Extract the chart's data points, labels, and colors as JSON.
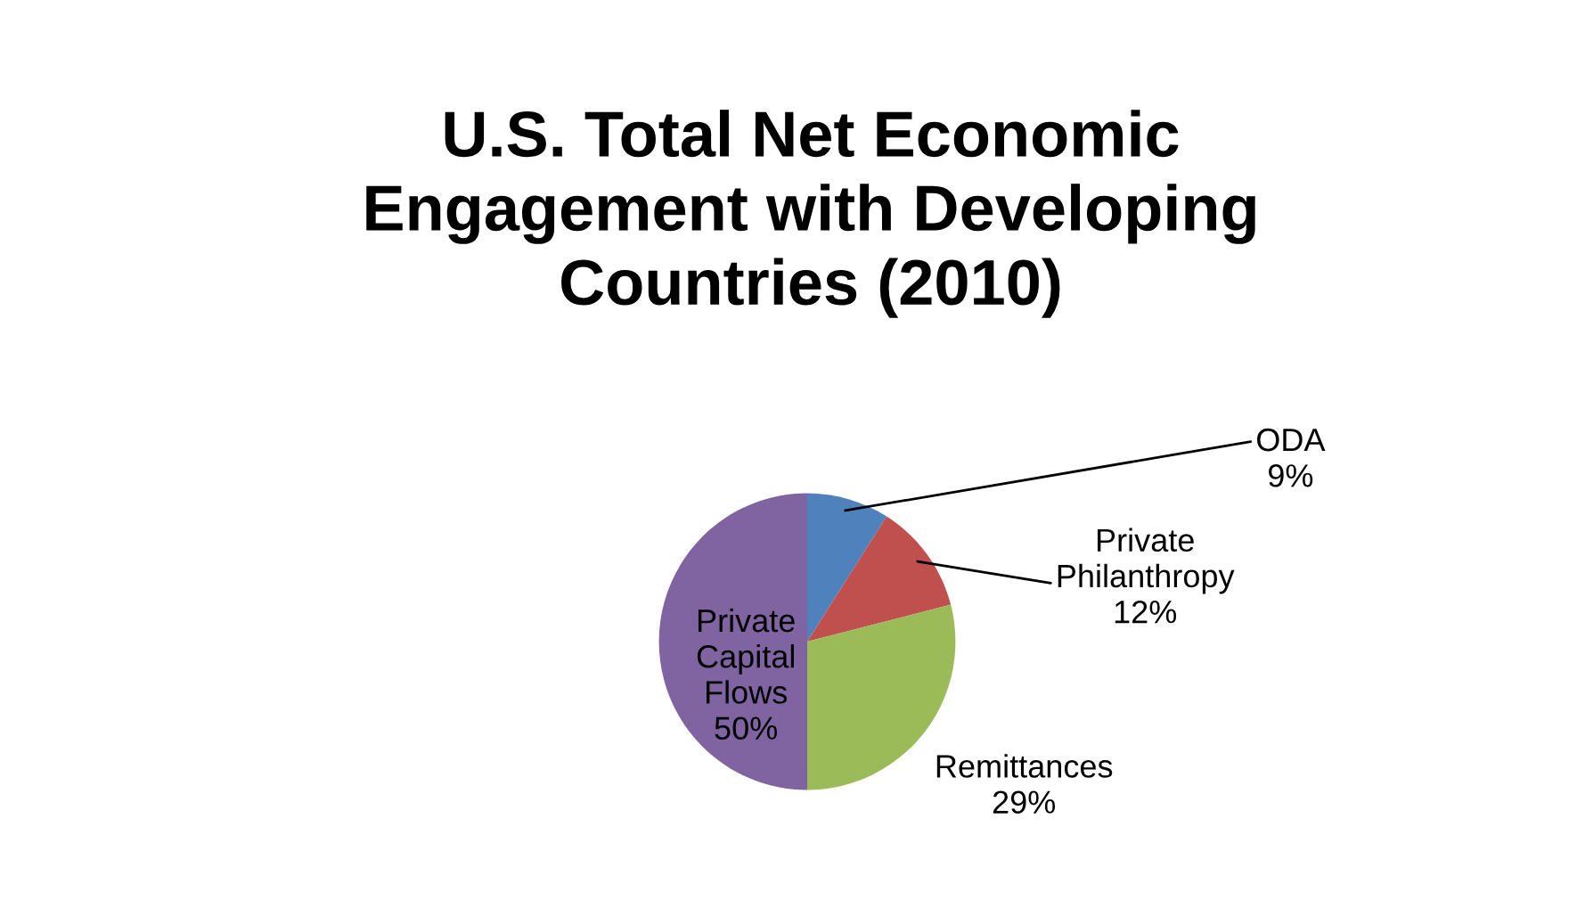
{
  "chart_data": {
    "type": "pie",
    "title": "U.S. Total Net Economic Engagement with Developing Countries (2010)",
    "categories": [
      "ODA",
      "Private Philanthropy",
      "Remittances",
      "Private Capital Flows"
    ],
    "values": [
      9,
      12,
      29,
      50
    ],
    "colors": [
      "#4f81bd",
      "#c0504d",
      "#9bbb59",
      "#8064a2"
    ],
    "value_labels": [
      "9%",
      "12%",
      "29%",
      "50%"
    ],
    "legend": false
  }
}
